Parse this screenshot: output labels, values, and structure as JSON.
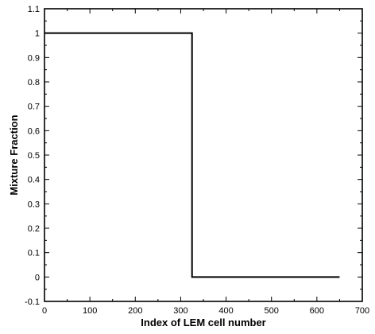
{
  "chart_data": {
    "type": "line",
    "title": "",
    "xlabel": "Index of LEM cell number",
    "ylabel": "Mixture Fraction",
    "xlim": [
      0,
      700
    ],
    "ylim": [
      -0.1,
      1.1
    ],
    "xticks": [
      0,
      100,
      200,
      300,
      400,
      500,
      600,
      700
    ],
    "xtick_labels": [
      "0",
      "100",
      "200",
      "300",
      "400",
      "500",
      "600",
      "700"
    ],
    "yticks": [
      -0.1,
      0,
      0.1,
      0.2,
      0.3,
      0.4,
      0.5,
      0.6,
      0.7,
      0.8,
      0.9,
      1,
      1.1
    ],
    "ytick_labels": [
      "-0.1",
      "0",
      "0.1",
      "0.2",
      "0.3",
      "0.4",
      "0.5",
      "0.6",
      "0.7",
      "0.8",
      "0.9",
      "1",
      "1.1"
    ],
    "grid": false,
    "legend": "none",
    "series": [
      {
        "color": "#000000",
        "x": [
          0,
          325,
          325,
          650
        ],
        "y": [
          1,
          1,
          0,
          0
        ]
      }
    ]
  }
}
